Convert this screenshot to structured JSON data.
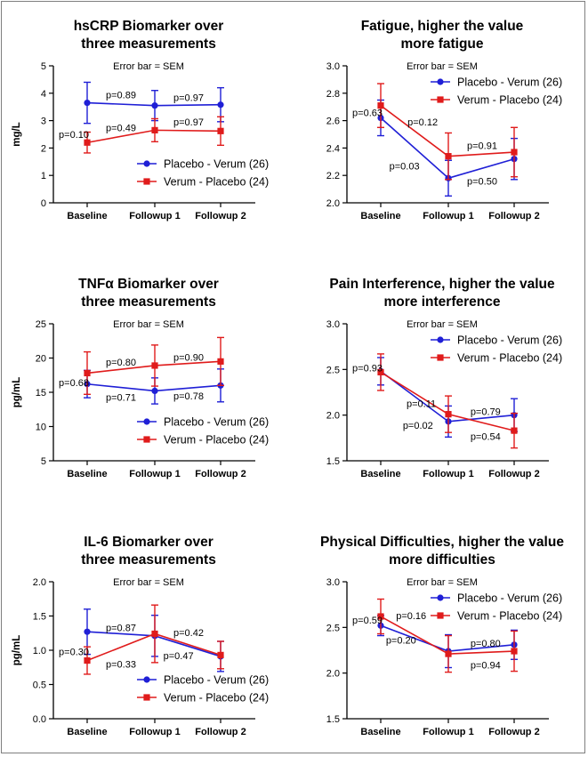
{
  "colors": {
    "placebo_verum": "#1f1fd6",
    "verum_placebo": "#e01b1b"
  },
  "chart_data": [
    {
      "type": "line",
      "title": [
        "hsCRP Biomarker over",
        "three measurements"
      ],
      "note": "Error bar = SEM",
      "ylabel": "mg/L",
      "categories": [
        "Baseline",
        "Followup 1",
        "Followup 2"
      ],
      "ylim": [
        0,
        5
      ],
      "yticks": [
        "0",
        "1",
        "2",
        "3",
        "4",
        "5"
      ],
      "series": [
        {
          "name": "Placebo - Verum (26)",
          "color": "#1f1fd6",
          "marker": "circle",
          "values": [
            3.65,
            3.55,
            3.58
          ],
          "err": [
            0.75,
            0.55,
            0.62
          ]
        },
        {
          "name": "Verum - Placebo (24)",
          "color": "#e01b1b",
          "marker": "square",
          "values": [
            2.2,
            2.65,
            2.62
          ],
          "err": [
            0.38,
            0.42,
            0.52
          ]
        }
      ],
      "pvalues": [
        {
          "text": "p=0.10",
          "x": 0,
          "y": 2.5,
          "anchor": "end"
        },
        {
          "text": "p=0.89",
          "x": 0.5,
          "y": 3.95,
          "anchor": "middle"
        },
        {
          "text": "p=0.97",
          "x": 1.5,
          "y": 3.85,
          "anchor": "middle"
        },
        {
          "text": "p=0.49",
          "x": 0.5,
          "y": 2.75,
          "anchor": "middle"
        },
        {
          "text": "p=0.97",
          "x": 1.5,
          "y": 2.95,
          "anchor": "middle"
        }
      ],
      "legend": "bottom-right"
    },
    {
      "type": "line",
      "title": [
        "Fatigue, higher the value",
        "more fatigue"
      ],
      "note": "Error bar = SEM",
      "ylabel": "",
      "categories": [
        "Baseline",
        "Followup 1",
        "Followup 2"
      ],
      "ylim": [
        2.0,
        3.0
      ],
      "yticks": [
        "2.0",
        "2.2",
        "2.4",
        "2.6",
        "2.8",
        "3.0"
      ],
      "series": [
        {
          "name": "Placebo - Verum (26)",
          "color": "#1f1fd6",
          "marker": "circle",
          "values": [
            2.62,
            2.18,
            2.32
          ],
          "err": [
            0.13,
            0.13,
            0.15
          ]
        },
        {
          "name": "Verum - Placebo (24)",
          "color": "#e01b1b",
          "marker": "square",
          "values": [
            2.71,
            2.34,
            2.37
          ],
          "err": [
            0.16,
            0.17,
            0.18
          ]
        }
      ],
      "pvalues": [
        {
          "text": "p=0.63",
          "x": 0,
          "y": 2.66,
          "anchor": "end"
        },
        {
          "text": "p=0.12",
          "x": 0.62,
          "y": 2.59,
          "anchor": "middle"
        },
        {
          "text": "p=0.03",
          "x": 0.35,
          "y": 2.27,
          "anchor": "middle"
        },
        {
          "text": "p=0.91",
          "x": 1.5,
          "y": 2.42,
          "anchor": "middle"
        },
        {
          "text": "p=0.50",
          "x": 1.5,
          "y": 2.16,
          "anchor": "middle"
        }
      ],
      "legend": "top-right"
    },
    {
      "type": "line",
      "title": [
        "TNFα Biomarker over",
        "three measurements"
      ],
      "note": "Error bar = SEM",
      "ylabel": "pg/mL",
      "categories": [
        "Baseline",
        "Followup 1",
        "Followup 2"
      ],
      "ylim": [
        5,
        25
      ],
      "yticks": [
        "5",
        "10",
        "15",
        "20",
        "25"
      ],
      "series": [
        {
          "name": "Placebo - Verum (26)",
          "color": "#1f1fd6",
          "marker": "circle",
          "values": [
            16.2,
            15.2,
            16.0
          ],
          "err": [
            2.0,
            1.9,
            2.4
          ]
        },
        {
          "name": "Verum - Placebo (24)",
          "color": "#e01b1b",
          "marker": "square",
          "values": [
            17.8,
            18.9,
            19.5
          ],
          "err": [
            3.1,
            3.0,
            3.5
          ]
        }
      ],
      "pvalues": [
        {
          "text": "p=0.68",
          "x": 0,
          "y": 16.4,
          "anchor": "end"
        },
        {
          "text": "p=0.80",
          "x": 0.5,
          "y": 19.4,
          "anchor": "middle"
        },
        {
          "text": "p=0.90",
          "x": 1.5,
          "y": 20.1,
          "anchor": "middle"
        },
        {
          "text": "p=0.71",
          "x": 0.5,
          "y": 14.3,
          "anchor": "middle"
        },
        {
          "text": "p=0.78",
          "x": 1.5,
          "y": 14.5,
          "anchor": "middle"
        }
      ],
      "legend": "bottom-right"
    },
    {
      "type": "line",
      "title": [
        "Pain Interference, higher the value",
        "more interference"
      ],
      "note": "Error bar = SEM",
      "ylabel": "",
      "categories": [
        "Baseline",
        "Followup 1",
        "Followup 2"
      ],
      "ylim": [
        1.5,
        3.0
      ],
      "yticks": [
        "1.5",
        "2.0",
        "2.5",
        "3.0"
      ],
      "series": [
        {
          "name": "Placebo - Verum (26)",
          "color": "#1f1fd6",
          "marker": "circle",
          "values": [
            2.48,
            1.93,
            2.0
          ],
          "err": [
            0.15,
            0.17,
            0.18
          ]
        },
        {
          "name": "Verum - Placebo (24)",
          "color": "#e01b1b",
          "marker": "square",
          "values": [
            2.47,
            2.01,
            1.83
          ],
          "err": [
            0.2,
            0.2,
            0.19
          ]
        }
      ],
      "pvalues": [
        {
          "text": "p=0.93",
          "x": 0,
          "y": 2.52,
          "anchor": "end"
        },
        {
          "text": "p=0.11",
          "x": 0.6,
          "y": 2.13,
          "anchor": "middle"
        },
        {
          "text": "p=0.02",
          "x": 0.55,
          "y": 1.89,
          "anchor": "middle"
        },
        {
          "text": "p=0.79",
          "x": 1.55,
          "y": 2.04,
          "anchor": "middle"
        },
        {
          "text": "p=0.54",
          "x": 1.55,
          "y": 1.77,
          "anchor": "middle"
        }
      ],
      "legend": "top-right"
    },
    {
      "type": "line",
      "title": [
        "IL-6 Biomarker over",
        "three measurements"
      ],
      "note": "Error bar = SEM",
      "ylabel": "pg/mL",
      "categories": [
        "Baseline",
        "Followup 1",
        "Followup 2"
      ],
      "ylim": [
        0.0,
        2.0
      ],
      "yticks": [
        "0.0",
        "0.5",
        "1.0",
        "1.5",
        "2.0"
      ],
      "series": [
        {
          "name": "Placebo - Verum (26)",
          "color": "#1f1fd6",
          "marker": "circle",
          "values": [
            1.27,
            1.21,
            0.91
          ],
          "err": [
            0.33,
            0.3,
            0.22
          ]
        },
        {
          "name": "Verum - Placebo (24)",
          "color": "#e01b1b",
          "marker": "square",
          "values": [
            0.85,
            1.24,
            0.93
          ],
          "err": [
            0.2,
            0.42,
            0.2
          ]
        }
      ],
      "pvalues": [
        {
          "text": "p=0.30",
          "x": 0,
          "y": 0.98,
          "anchor": "end"
        },
        {
          "text": "p=0.87",
          "x": 0.5,
          "y": 1.33,
          "anchor": "middle"
        },
        {
          "text": "p=0.33",
          "x": 0.5,
          "y": 0.8,
          "anchor": "middle"
        },
        {
          "text": "p=0.42",
          "x": 1.5,
          "y": 1.26,
          "anchor": "middle"
        },
        {
          "text": "p=0.47",
          "x": 1.35,
          "y": 0.92,
          "anchor": "middle"
        }
      ],
      "legend": "bottom-right"
    },
    {
      "type": "line",
      "title": [
        "Physical Difficulties, higher the value",
        "more difficulties"
      ],
      "note": "Error bar = SEM",
      "ylabel": "",
      "categories": [
        "Baseline",
        "Followup 1",
        "Followup 2"
      ],
      "ylim": [
        1.5,
        3.0
      ],
      "yticks": [
        "1.5",
        "2.0",
        "2.5",
        "3.0"
      ],
      "series": [
        {
          "name": "Placebo - Verum (26)",
          "color": "#1f1fd6",
          "marker": "circle",
          "values": [
            2.52,
            2.24,
            2.31
          ],
          "err": [
            0.11,
            0.18,
            0.16
          ]
        },
        {
          "name": "Verum - Placebo (24)",
          "color": "#e01b1b",
          "marker": "square",
          "values": [
            2.62,
            2.21,
            2.24
          ],
          "err": [
            0.19,
            0.2,
            0.22
          ]
        }
      ],
      "pvalues": [
        {
          "text": "p=0.59",
          "x": 0,
          "y": 2.58,
          "anchor": "end"
        },
        {
          "text": "p=0.16",
          "x": 0.45,
          "y": 2.63,
          "anchor": "middle"
        },
        {
          "text": "p=0.20",
          "x": 0.3,
          "y": 2.36,
          "anchor": "middle"
        },
        {
          "text": "p=0.80",
          "x": 1.55,
          "y": 2.33,
          "anchor": "middle"
        },
        {
          "text": "p=0.94",
          "x": 1.55,
          "y": 2.09,
          "anchor": "middle"
        }
      ],
      "legend": "top-right"
    }
  ]
}
